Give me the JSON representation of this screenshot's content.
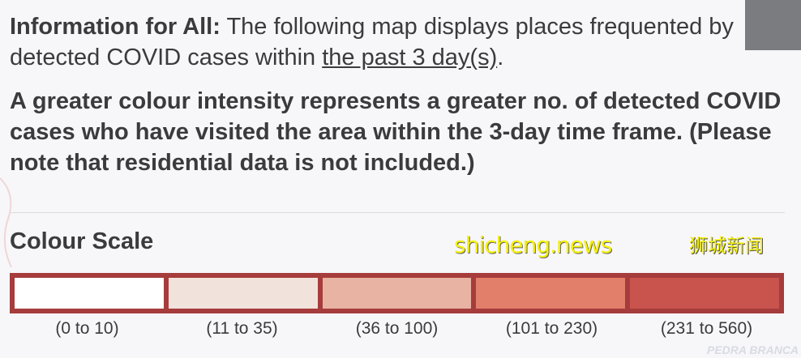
{
  "info": {
    "lead": "Information for All:",
    "text_before": " The following map displays places frequented by detected COVID cases within ",
    "underlined": "the past 3 day(s)",
    "text_after": ".",
    "intensity_note": "A greater colour intensity represents a greater no. of detected COVID cases who have visited the area within the 3-day time frame. (Please note that residential data is not included.)"
  },
  "colour_scale": {
    "title": "Colour Scale",
    "border_color": "#a63c3c",
    "bins": [
      {
        "label": "(0 to 10)",
        "color": "#ffffff"
      },
      {
        "label": "(11 to 35)",
        "color": "#f2e2dc"
      },
      {
        "label": "(36 to 100)",
        "color": "#e8b3a3"
      },
      {
        "label": "(101 to 230)",
        "color": "#e17f6a"
      },
      {
        "label": "(231 to 560)",
        "color": "#c9544d"
      }
    ]
  },
  "map": {
    "place_label": "PEDRA BRANCA"
  },
  "watermarks": {
    "top": "狮城新闻",
    "bottom": "shicheng.news"
  }
}
